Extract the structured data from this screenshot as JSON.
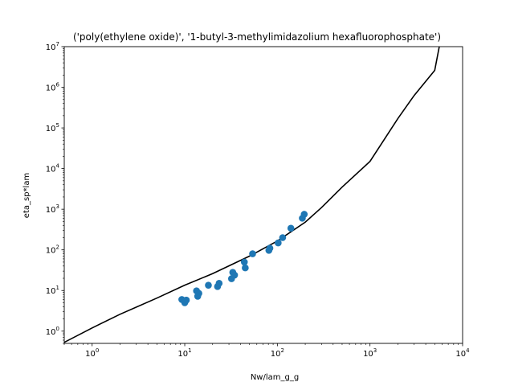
{
  "chart_data": {
    "type": "scatter",
    "title": "('poly(ethylene oxide)', '1-butyl-3-methylimidazolium hexafluorophosphate')",
    "xlabel": "Nw/lam_g_g",
    "ylabel": "eta_sp*lam",
    "xscale": "log",
    "yscale": "log",
    "xlim": [
      0.5,
      10000
    ],
    "ylim": [
      0.5,
      10000000
    ],
    "grid": false,
    "x_ticks": [
      {
        "value": 1,
        "mantissa": "10",
        "exp": "0"
      },
      {
        "value": 10,
        "mantissa": "10",
        "exp": "1"
      },
      {
        "value": 100,
        "mantissa": "10",
        "exp": "2"
      },
      {
        "value": 1000,
        "mantissa": "10",
        "exp": "3"
      },
      {
        "value": 10000,
        "mantissa": "10",
        "exp": "4"
      }
    ],
    "y_ticks": [
      {
        "value": 1,
        "mantissa": "10",
        "exp": "0"
      },
      {
        "value": 10,
        "mantissa": "10",
        "exp": "1"
      },
      {
        "value": 100,
        "mantissa": "10",
        "exp": "2"
      },
      {
        "value": 1000,
        "mantissa": "10",
        "exp": "3"
      },
      {
        "value": 10000,
        "mantissa": "10",
        "exp": "4"
      },
      {
        "value": 100000,
        "mantissa": "10",
        "exp": "5"
      },
      {
        "value": 1000000,
        "mantissa": "10",
        "exp": "6"
      },
      {
        "value": 10000000,
        "mantissa": "10",
        "exp": "7"
      }
    ],
    "colors": {
      "points": "#1f77b4",
      "curve": "#000000"
    },
    "series": [
      {
        "kind": "scatter",
        "points": [
          [
            9.3,
            6.0
          ],
          [
            10.0,
            5.0
          ],
          [
            10.4,
            5.8
          ],
          [
            9.9,
            5.5
          ],
          [
            13.4,
            9.8
          ],
          [
            14.2,
            8.5
          ],
          [
            13.8,
            7.2
          ],
          [
            18.0,
            13.5
          ],
          [
            22.6,
            12.5
          ],
          [
            23.5,
            15.0
          ],
          [
            32.0,
            19.5
          ],
          [
            33.0,
            28.0
          ],
          [
            34.5,
            24.0
          ],
          [
            44.0,
            50.0
          ],
          [
            45.0,
            36.0
          ],
          [
            54.0,
            80.0
          ],
          [
            81.0,
            97.0
          ],
          [
            83.0,
            110.0
          ],
          [
            102.0,
            148.0
          ],
          [
            114.0,
            200.0
          ],
          [
            140.0,
            340.0
          ],
          [
            186.0,
            600.0
          ],
          [
            195.0,
            750.0
          ]
        ]
      },
      {
        "kind": "line",
        "points": [
          [
            0.5,
            0.53
          ],
          [
            1,
            1.2
          ],
          [
            2,
            2.6
          ],
          [
            5,
            6.5
          ],
          [
            10,
            13.5
          ],
          [
            20,
            26
          ],
          [
            50,
            70
          ],
          [
            100,
            165
          ],
          [
            200,
            480
          ],
          [
            300,
            1100
          ],
          [
            500,
            3500
          ],
          [
            1000,
            15000
          ],
          [
            2000,
            170000
          ],
          [
            3000,
            630000
          ],
          [
            5000,
            2600000
          ],
          [
            5600,
            10000000
          ]
        ]
      }
    ]
  }
}
